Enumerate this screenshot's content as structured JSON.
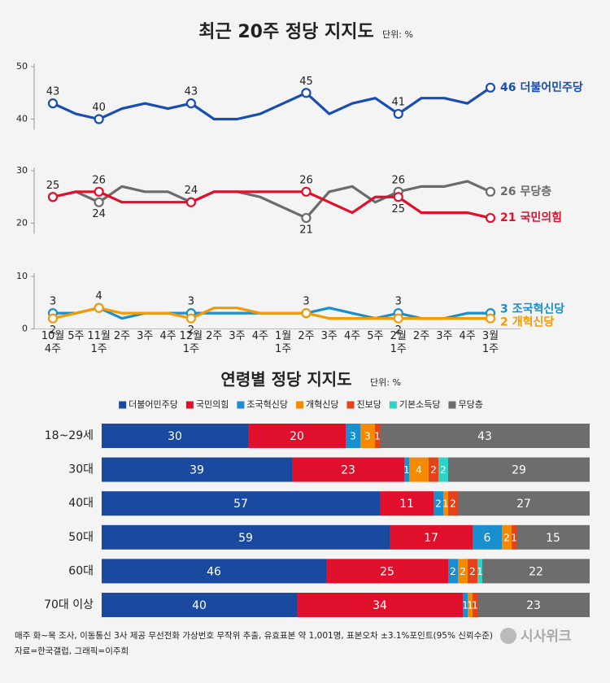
{
  "chart_data": [
    {
      "type": "line",
      "title": "최근 20주 정당 지지도",
      "unit": "단위: %",
      "categories": [
        "10월\n4주",
        "5주",
        "11월\n1주",
        "2주",
        "3주",
        "4주",
        "12월\n1주",
        "2주",
        "3주",
        "4주",
        "1월\n1주",
        "2주",
        "3주",
        "4주",
        "5주",
        "2월\n1주",
        "2주",
        "3주",
        "4주",
        "3월\n1주"
      ],
      "marker_indices": [
        0,
        2,
        6,
        11,
        15,
        19
      ],
      "panels": [
        {
          "ylim": [
            38,
            50
          ],
          "yticks": [
            40,
            50
          ],
          "series": [
            {
              "name": "더불어민주당",
              "color": "#1a4db0",
              "values": [
                43,
                41,
                40,
                42,
                43,
                42,
                43,
                40,
                40,
                41,
                43,
                45,
                41,
                43,
                44,
                41,
                44,
                44,
                43,
                46
              ]
            }
          ]
        },
        {
          "ylim": [
            18,
            30
          ],
          "yticks": [
            20,
            30
          ],
          "series": [
            {
              "name": "무당층",
              "color": "#6b6b6b",
              "values": [
                25,
                26,
                24,
                27,
                26,
                26,
                24,
                26,
                26,
                25,
                23,
                21,
                26,
                27,
                24,
                26,
                27,
                27,
                28,
                26
              ]
            },
            {
              "name": "국민의힘",
              "color": "#e0102d",
              "values": [
                25,
                26,
                26,
                24,
                24,
                24,
                24,
                26,
                26,
                26,
                26,
                26,
                24,
                22,
                25,
                25,
                22,
                22,
                22,
                21
              ]
            }
          ]
        },
        {
          "ylim": [
            0,
            10
          ],
          "yticks": [
            0,
            10
          ],
          "series": [
            {
              "name": "조국혁신당",
              "color": "#1a8fd0",
              "values": [
                3,
                3,
                4,
                2,
                3,
                3,
                3,
                3,
                3,
                3,
                3,
                3,
                4,
                3,
                2,
                3,
                2,
                2,
                3,
                3
              ]
            },
            {
              "name": "개혁신당",
              "color": "#f59a00",
              "values": [
                2,
                3,
                4,
                3,
                3,
                3,
                2,
                4,
                4,
                3,
                3,
                3,
                2,
                2,
                2,
                2,
                2,
                2,
                2,
                2
              ]
            }
          ]
        }
      ]
    },
    {
      "type": "stacked_bar",
      "orientation": "horizontal",
      "title": "연령별 정당 지지도",
      "unit": "단위: %",
      "categories": [
        "18~29세",
        "30대",
        "40대",
        "50대",
        "60대",
        "70대 이상"
      ],
      "xlim": [
        0,
        100
      ],
      "series": [
        {
          "name": "더불어민주당",
          "color": "#1a4a9f",
          "values": [
            30,
            39,
            57,
            59,
            46,
            40
          ]
        },
        {
          "name": "국민의힘",
          "color": "#e0102d",
          "values": [
            20,
            23,
            11,
            17,
            25,
            34
          ]
        },
        {
          "name": "조국혁신당",
          "color": "#1a8fd0",
          "values": [
            3,
            1,
            2,
            6,
            2,
            1
          ]
        },
        {
          "name": "개혁신당",
          "color": "#f58a00",
          "values": [
            3,
            4,
            1,
            2,
            2,
            1
          ]
        },
        {
          "name": "진보당",
          "color": "#e5421c",
          "values": [
            1,
            2,
            2,
            1,
            2,
            1
          ]
        },
        {
          "name": "기본소득당",
          "color": "#2fd3c6",
          "values": [
            null,
            2,
            null,
            null,
            1,
            null
          ]
        },
        {
          "name": "무당층",
          "color": "#6d6d6d",
          "values": [
            43,
            29,
            27,
            15,
            22,
            23
          ]
        }
      ]
    }
  ],
  "footer": {
    "note": "매주 화~목 조사, 이동통신 3사 제공 무선전화 가상번호 무작위 추출, 유효표본 약 1,001명, 표본오차 ±3.1%포인트(95% 신뢰수준)",
    "source": "자료=한국갤럽, 그래픽=이주희",
    "logo": "시사위크"
  }
}
